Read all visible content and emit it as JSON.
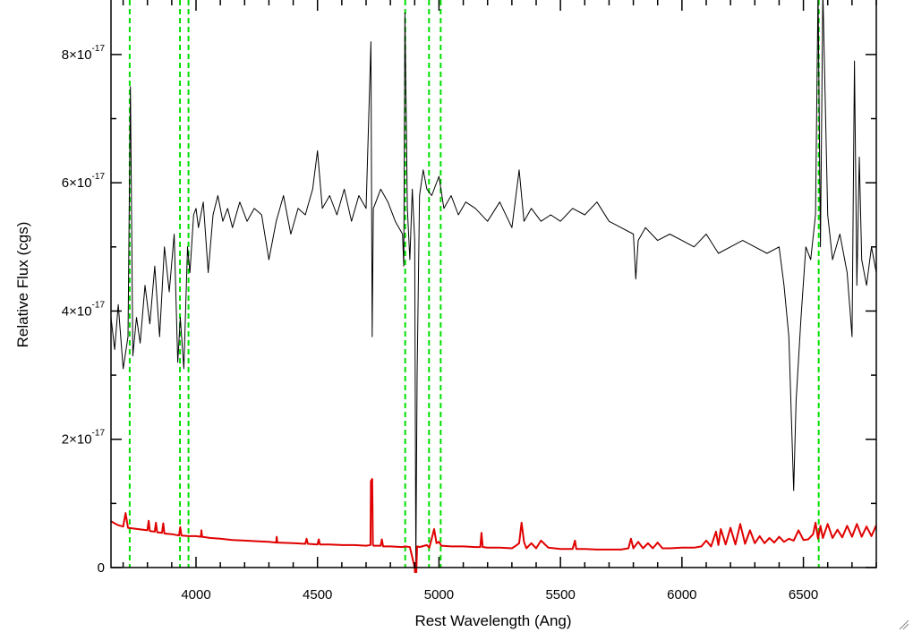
{
  "chart_data": {
    "type": "line",
    "title": "",
    "xlabel": "Rest Wavelength (Ang)",
    "ylabel": "Relative Flux (cgs)",
    "xlim": [
      3650,
      6800
    ],
    "ylim": [
      0,
      8.85e-17
    ],
    "grid": false,
    "x_ticks": [
      {
        "value": 4000,
        "label": "4000"
      },
      {
        "value": 4500,
        "label": "4500"
      },
      {
        "value": 5000,
        "label": "5000"
      },
      {
        "value": 5500,
        "label": "5500"
      },
      {
        "value": 6000,
        "label": "6000"
      },
      {
        "value": 6500,
        "label": "6500"
      }
    ],
    "y_ticks": [
      {
        "value": 0,
        "label": "0",
        "exp": ""
      },
      {
        "value": 2e-17,
        "label": "2×10",
        "exp": "-17"
      },
      {
        "value": 4e-17,
        "label": "4×10",
        "exp": "-17"
      },
      {
        "value": 6e-17,
        "label": "6×10",
        "exp": "-17"
      },
      {
        "value": 8e-17,
        "label": "8×10",
        "exp": "-17"
      }
    ],
    "series": [
      {
        "color": "#000000",
        "x": [
          3650,
          3665,
          3680,
          3700,
          3720,
          3730,
          3740,
          3755,
          3770,
          3790,
          3810,
          3830,
          3850,
          3870,
          3890,
          3910,
          3925,
          3935,
          3950,
          3965,
          3975,
          3990,
          4000,
          4010,
          4030,
          4050,
          4070,
          4090,
          4110,
          4130,
          4150,
          4180,
          4210,
          4240,
          4270,
          4300,
          4330,
          4360,
          4390,
          4420,
          4450,
          4480,
          4500,
          4520,
          4550,
          4580,
          4610,
          4640,
          4670,
          4700,
          4720,
          4725,
          4730,
          4740,
          4760,
          4790,
          4820,
          4850,
          4855,
          4860,
          4870,
          4880,
          4890,
          4900,
          4905,
          4910,
          4920,
          4935,
          4950,
          4970,
          5000,
          5020,
          5050,
          5080,
          5110,
          5150,
          5200,
          5250,
          5300,
          5330,
          5350,
          5380,
          5420,
          5460,
          5500,
          5550,
          5600,
          5650,
          5700,
          5750,
          5800,
          5810,
          5820,
          5850,
          5900,
          5950,
          6000,
          6050,
          6100,
          6150,
          6200,
          6250,
          6300,
          6350,
          6400,
          6420,
          6440,
          6450,
          6460,
          6470,
          6490,
          6510,
          6530,
          6550,
          6560,
          6570,
          6580,
          6600,
          6620,
          6650,
          6680,
          6700,
          6710,
          6720,
          6730,
          6740,
          6760,
          6780,
          6800
        ],
        "y": [
          3.9e-17,
          3.4e-17,
          4.1e-17,
          3.1e-17,
          3.6e-17,
          7.5e-17,
          3.3e-17,
          3.9e-17,
          3.5e-17,
          4.4e-17,
          3.8e-17,
          4.7e-17,
          3.6e-17,
          5e-17,
          4.3e-17,
          5.2e-17,
          3.2e-17,
          3.9e-17,
          3.1e-17,
          5e-17,
          4.6e-17,
          5.5e-17,
          5.6e-17,
          5.3e-17,
          5.7e-17,
          4.6e-17,
          5.5e-17,
          5.8e-17,
          5.4e-17,
          5.6e-17,
          5.3e-17,
          5.7e-17,
          5.4e-17,
          5.6e-17,
          5.5e-17,
          4.8e-17,
          5.4e-17,
          5.8e-17,
          5.2e-17,
          5.6e-17,
          5.5e-17,
          5.9e-17,
          6.5e-17,
          5.6e-17,
          5.8e-17,
          5.5e-17,
          5.9e-17,
          5.4e-17,
          5.8e-17,
          5.6e-17,
          8.2e-17,
          3.6e-17,
          5.6e-17,
          5.7e-17,
          5.9e-17,
          5.7e-17,
          5.4e-17,
          5.2e-17,
          4.7e-17,
          8.65e-17,
          5.6e-17,
          4.8e-17,
          5.9e-17,
          5.1e-17,
          0.0,
          3e-17,
          5.8e-17,
          6.2e-17,
          5.9e-17,
          5.8e-17,
          6.1e-17,
          5.6e-17,
          5.8e-17,
          5.5e-17,
          5.7e-17,
          5.6e-17,
          5.4e-17,
          5.7e-17,
          5.3e-17,
          6.2e-17,
          5.4e-17,
          5.6e-17,
          5.4e-17,
          5.5e-17,
          5.4e-17,
          5.6e-17,
          5.5e-17,
          5.7e-17,
          5.4e-17,
          5.3e-17,
          5.2e-17,
          4.5e-17,
          5.1e-17,
          5.3e-17,
          5.1e-17,
          5.2e-17,
          5.1e-17,
          5e-17,
          5.2e-17,
          4.9e-17,
          5e-17,
          5.1e-17,
          5e-17,
          4.9e-17,
          5e-17,
          4.4e-17,
          3.6e-17,
          2.4e-17,
          1.2e-17,
          2.6e-17,
          3.9e-17,
          5e-17,
          4.8e-17,
          5.5e-17,
          9e-17,
          5e-17,
          9e-17,
          5.5e-17,
          4.8e-17,
          5.2e-17,
          4.6e-17,
          3.6e-17,
          7.9e-17,
          4.4e-17,
          6.4e-17,
          4.8e-17,
          4.4e-17,
          5e-17,
          4.6e-17
        ]
      },
      {
        "color": "#e00000",
        "x": [
          3650,
          3680,
          3700,
          3710,
          3720,
          3760,
          3800,
          3805,
          3810,
          3830,
          3835,
          3840,
          3860,
          3865,
          3870,
          3900,
          3930,
          3935,
          3940,
          3970,
          4000,
          4020,
          4022,
          4025,
          4060,
          4100,
          4150,
          4200,
          4250,
          4300,
          4330,
          4332,
          4335,
          4400,
          4450,
          4455,
          4460,
          4500,
          4505,
          4510,
          4550,
          4600,
          4650,
          4700,
          4718,
          4720,
          4725,
          4728,
          4730,
          4760,
          4765,
          4770,
          4800,
          4850,
          4860,
          4880,
          4900,
          4905,
          4910,
          4920,
          4950,
          4960,
          4970,
          4980,
          4990,
          5000,
          5010,
          5050,
          5100,
          5150,
          5170,
          5175,
          5180,
          5200,
          5250,
          5300,
          5320,
          5330,
          5340,
          5350,
          5360,
          5380,
          5400,
          5420,
          5450,
          5500,
          5550,
          5560,
          5565,
          5570,
          5600,
          5650,
          5700,
          5750,
          5780,
          5790,
          5800,
          5820,
          5840,
          5860,
          5880,
          5900,
          5920,
          5950,
          6000,
          6050,
          6080,
          6100,
          6120,
          6140,
          6150,
          6160,
          6180,
          6200,
          6220,
          6240,
          6260,
          6280,
          6300,
          6320,
          6340,
          6360,
          6380,
          6400,
          6420,
          6440,
          6460,
          6480,
          6500,
          6520,
          6540,
          6550,
          6560,
          6570,
          6580,
          6600,
          6620,
          6640,
          6660,
          6680,
          6700,
          6720,
          6740,
          6760,
          6780,
          6800
        ],
        "y": [
          7.2e-18,
          6.6e-18,
          6.4e-18,
          8.5e-18,
          6.2e-18,
          6e-18,
          5.8e-18,
          7.3e-18,
          5.7e-18,
          5.6e-18,
          7e-18,
          5.5e-18,
          5.4e-18,
          6.9e-18,
          5.3e-18,
          5.2e-18,
          5e-18,
          6.3e-18,
          5e-18,
          4.9e-18,
          4.9e-18,
          4.8e-18,
          5.8e-18,
          4.8e-18,
          4.6e-18,
          4.5e-18,
          4.3e-18,
          4.2e-18,
          4.1e-18,
          4e-18,
          3.9e-18,
          4.8e-18,
          3.9e-18,
          3.8e-18,
          3.7e-18,
          4.5e-18,
          3.7e-18,
          3.6e-18,
          4.4e-18,
          3.6e-18,
          3.6e-18,
          3.5e-18,
          3.5e-18,
          3.4e-18,
          3.5e-18,
          1.35e-17,
          1.38e-17,
          3.6e-18,
          3.4e-18,
          3.4e-18,
          4.4e-18,
          3.3e-18,
          3.3e-18,
          3.2e-18,
          3.3e-18,
          3.2e-18,
          0.0,
          -3e-18,
          3.3e-18,
          3.2e-18,
          3.5e-18,
          3.1e-18,
          4.5e-18,
          6e-18,
          3.8e-18,
          4e-18,
          3.4e-18,
          3.3e-18,
          3.3e-18,
          3.2e-18,
          3.2e-18,
          5.4e-18,
          3.2e-18,
          3.1e-18,
          3.1e-18,
          3e-18,
          3.5e-18,
          3.8e-18,
          7e-18,
          4e-18,
          3e-18,
          3.8e-18,
          3e-18,
          4.2e-18,
          3.1e-18,
          2.9e-18,
          2.9e-18,
          4.2e-18,
          2.9e-18,
          2.9e-18,
          2.9e-18,
          2.8e-18,
          2.8e-18,
          2.8e-18,
          3e-18,
          4.5e-18,
          3e-18,
          4e-18,
          3e-18,
          3.8e-18,
          3e-18,
          3.9e-18,
          3e-18,
          3e-18,
          3.1e-18,
          3.1e-18,
          3.3e-18,
          4.2e-18,
          3.3e-18,
          5.6e-18,
          3.5e-18,
          6e-18,
          3.6e-18,
          6.2e-18,
          3.6e-18,
          6.8e-18,
          3.7e-18,
          5.8e-18,
          3.8e-18,
          4.9e-18,
          3.8e-18,
          4.6e-18,
          3.9e-18,
          4.8e-18,
          4e-18,
          4.5e-18,
          4.2e-18,
          5.8e-18,
          4.3e-18,
          4.4e-18,
          5.2e-18,
          7e-18,
          4.5e-18,
          6.5e-18,
          4.6e-18,
          6.8e-18,
          4.6e-18,
          5.9e-18,
          4.7e-18,
          6.5e-18,
          4.8e-18,
          6.8e-18,
          4.8e-18,
          6.4e-18,
          4.9e-18,
          6.6e-18
        ]
      }
    ],
    "vlines": {
      "color": "#00e000",
      "x": [
        3727,
        3934,
        3969,
        4861,
        4959,
        5007,
        6563
      ]
    }
  }
}
